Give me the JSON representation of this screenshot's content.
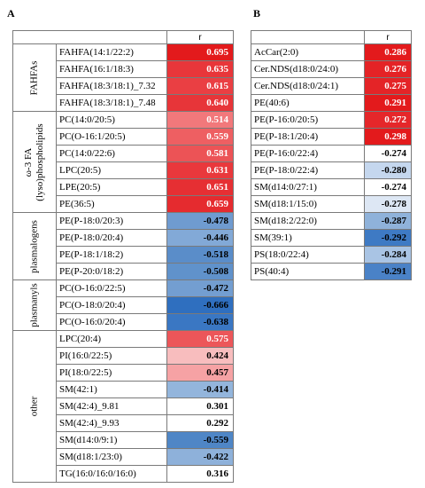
{
  "panelA": {
    "label": "A",
    "header": "r",
    "groups": [
      {
        "name": "FAHFAs",
        "rows": [
          {
            "name": "FAHFA(14:1/22:2)",
            "value": "0.695",
            "bg": "#e31a1c",
            "fg": "#ffffff"
          },
          {
            "name": "FAHFA(16:1/18:3)",
            "value": "0.635",
            "bg": "#e8363a",
            "fg": "#ffffff"
          },
          {
            "name": "FAHFA(18:3/18:1)_7.32",
            "value": "0.615",
            "bg": "#ea3f43",
            "fg": "#ffffff"
          },
          {
            "name": "FAHFA(18:3/18:1)_7.48",
            "value": "0.640",
            "bg": "#e73539",
            "fg": "#ffffff"
          }
        ]
      },
      {
        "name": "ω-3 FA (lyso)phospholipids",
        "rows": [
          {
            "name": "PC(14:0/20:5)",
            "value": "0.514",
            "bg": "#f2787b",
            "fg": "#ffffff"
          },
          {
            "name": "PC(O-16:1/20:5)",
            "value": "0.559",
            "bg": "#ee5f62",
            "fg": "#ffffff"
          },
          {
            "name": "PC(14:0/22:6)",
            "value": "0.581",
            "bg": "#ec5356",
            "fg": "#ffffff"
          },
          {
            "name": "LPC(20:5)",
            "value": "0.631",
            "bg": "#e9383c",
            "fg": "#ffffff"
          },
          {
            "name": "LPE(20:5)",
            "value": "0.651",
            "bg": "#e62f33",
            "fg": "#ffffff"
          },
          {
            "name": "PE(36:5)",
            "value": "0.659",
            "bg": "#e52b2f",
            "fg": "#ffffff"
          }
        ]
      },
      {
        "name": "plasmalogens",
        "rows": [
          {
            "name": "PE(P-18:0/20:3)",
            "value": "-0.478",
            "bg": "#6f9bd0",
            "fg": "#000000"
          },
          {
            "name": "PE(P-18:0/20:4)",
            "value": "-0.446",
            "bg": "#82a9d7",
            "fg": "#000000"
          },
          {
            "name": "PE(P-18:1/18:2)",
            "value": "-0.518",
            "bg": "#5a8dc9",
            "fg": "#000000"
          },
          {
            "name": "PE(P-20:0/18:2)",
            "value": "-0.508",
            "bg": "#6092cb",
            "fg": "#000000"
          }
        ]
      },
      {
        "name": "plasmanyls",
        "rows": [
          {
            "name": "PC(O-16:0/22:5)",
            "value": "-0.472",
            "bg": "#739ed1",
            "fg": "#000000"
          },
          {
            "name": "PC(O-18:0/20:4)",
            "value": "-0.666",
            "bg": "#2f6fbf",
            "fg": "#000000"
          },
          {
            "name": "PC(O-16:0/20:4)",
            "value": "-0.638",
            "bg": "#3a77c3",
            "fg": "#000000"
          }
        ]
      },
      {
        "name": "other",
        "rows": [
          {
            "name": "LPC(20:4)",
            "value": "0.575",
            "bg": "#ec5659",
            "fg": "#ffffff"
          },
          {
            "name": "PI(16:0/22:5)",
            "value": "0.424",
            "bg": "#f8bdbe",
            "fg": "#000000"
          },
          {
            "name": "PI(18:0/22:5)",
            "value": "0.457",
            "bg": "#f6a2a4",
            "fg": "#000000"
          },
          {
            "name": "SM(42:1)",
            "value": "-0.414",
            "bg": "#93b5dc",
            "fg": "#000000"
          },
          {
            "name": "SM(42:4)_9.81",
            "value": "0.301",
            "bg": "#ffffff",
            "fg": "#000000"
          },
          {
            "name": "SM(42:4)_9.93",
            "value": "0.292",
            "bg": "#ffffff",
            "fg": "#000000"
          },
          {
            "name": "SM(d14:0/9:1)",
            "value": "-0.559",
            "bg": "#4f86c6",
            "fg": "#000000"
          },
          {
            "name": "SM(d18:1/23:0)",
            "value": "-0.422",
            "bg": "#8eb1da",
            "fg": "#000000"
          },
          {
            "name": "TG(16:0/16:0/16:0)",
            "value": "0.316",
            "bg": "#ffffff",
            "fg": "#000000"
          }
        ]
      }
    ]
  },
  "panelB": {
    "label": "B",
    "header": "r",
    "rows": [
      {
        "name": "AcCar(2:0)",
        "value": "0.286",
        "bg": "#e31a1c",
        "fg": "#ffffff"
      },
      {
        "name": "Cer.NDS(d18:0/24:0)",
        "value": "0.276",
        "bg": "#e42326",
        "fg": "#ffffff"
      },
      {
        "name": "Cer.NDS(d18:0/24:1)",
        "value": "0.275",
        "bg": "#e42427",
        "fg": "#ffffff"
      },
      {
        "name": "PE(40:6)",
        "value": "0.291",
        "bg": "#e31a1c",
        "fg": "#ffffff"
      },
      {
        "name": "PE(P-16:0/20:5)",
        "value": "0.272",
        "bg": "#e5272a",
        "fg": "#ffffff"
      },
      {
        "name": "PE(P-18:1/20:4)",
        "value": "0.298",
        "bg": "#e31a1c",
        "fg": "#ffffff"
      },
      {
        "name": "PE(P-16:0/22:4)",
        "value": "-0.274",
        "bg": "#ffffff",
        "fg": "#000000"
      },
      {
        "name": "PE(P-18:0/22:4)",
        "value": "-0.280",
        "bg": "#c5d7ee",
        "fg": "#000000"
      },
      {
        "name": "SM(d14:0/27:1)",
        "value": "-0.274",
        "bg": "#ffffff",
        "fg": "#000000"
      },
      {
        "name": "SM(d18:1/15:0)",
        "value": "-0.278",
        "bg": "#dde7f4",
        "fg": "#000000"
      },
      {
        "name": "SM(d18:2/22:0)",
        "value": "-0.287",
        "bg": "#8fb2da",
        "fg": "#000000"
      },
      {
        "name": "SM(39:1)",
        "value": "-0.292",
        "bg": "#3e7ac4",
        "fg": "#000000"
      },
      {
        "name": "PS(18:0/22:4)",
        "value": "-0.284",
        "bg": "#a9c4e4",
        "fg": "#000000"
      },
      {
        "name": "PS(40:4)",
        "value": "-0.291",
        "bg": "#4a82c7",
        "fg": "#000000"
      }
    ]
  }
}
